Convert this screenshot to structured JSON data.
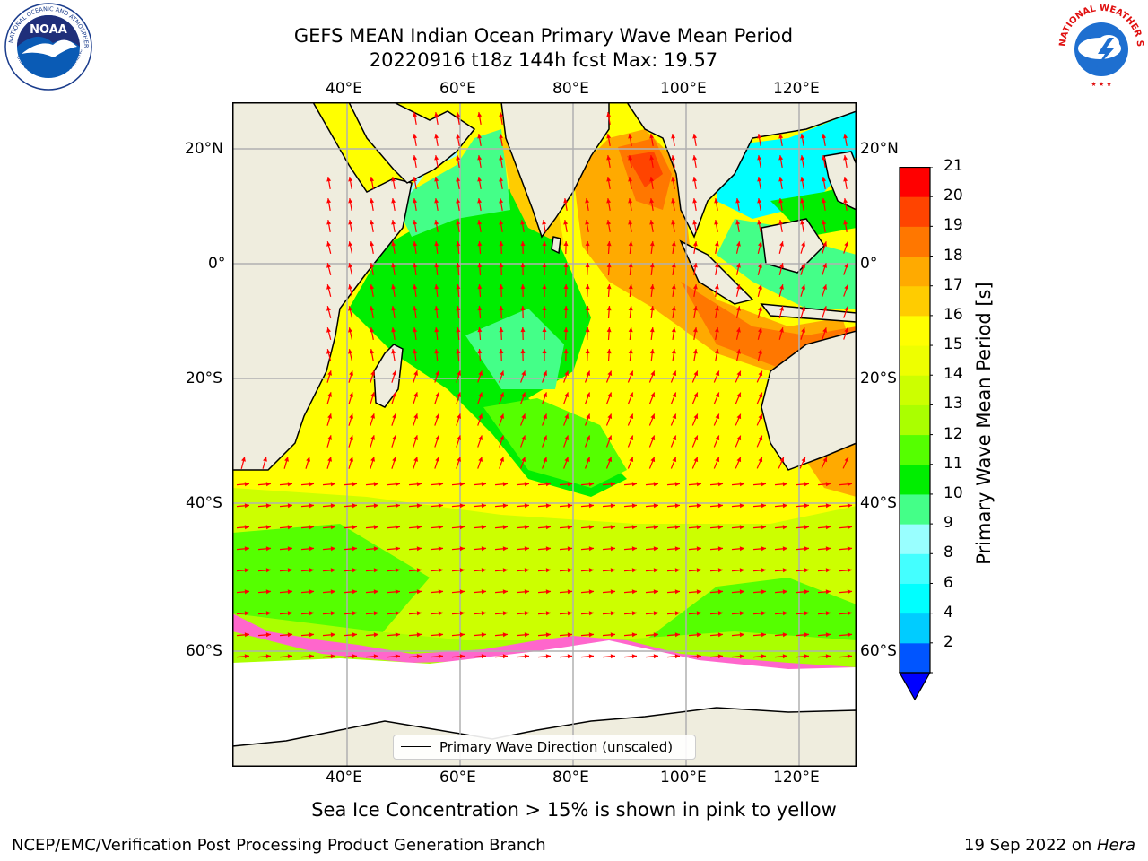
{
  "header": {
    "title_line1": "GEFS MEAN Indian Ocean Primary Wave Mean Period",
    "title_line2": "20220916 t18z 144h fcst   Max: 19.57"
  },
  "logos": {
    "noaa_text": "NOAA",
    "noaa_ring_text": "NATIONAL OCEANIC AND ATMOSPHERIC ADMINISTRATION",
    "noaa_ring_bottom": "U.S. DEPARTMENT OF COMMERCE",
    "nws_ring_text": "NATIONAL WEATHER SERVICE"
  },
  "map": {
    "lon_labels_top": [
      "40°E",
      "60°E",
      "80°E",
      "100°E",
      "120°E"
    ],
    "lon_labels_bottom": [
      "40°E",
      "60°E",
      "80°E",
      "100°E",
      "120°E"
    ],
    "lat_labels_left": [
      "20°N",
      "0°",
      "20°S",
      "40°S",
      "60°S"
    ],
    "lat_labels_right": [
      "20°N",
      "0°",
      "20°S",
      "40°S",
      "60°S"
    ],
    "lon_range": [
      20,
      130
    ],
    "lat_range": [
      -72,
      28
    ],
    "land_color": "#efedde",
    "arrow_color": "#ff0000"
  },
  "legend": {
    "label": "Primary Wave Direction (unscaled)"
  },
  "colorbar": {
    "label": "Primary Wave Mean Period [s]",
    "ticks": [
      "21",
      "20",
      "19",
      "18",
      "17",
      "16",
      "15",
      "14",
      "13",
      "12",
      "11",
      "10",
      "9",
      "8",
      "6",
      "4",
      "2"
    ],
    "colors_bottom_to_top": [
      "#0055ff",
      "#00ccff",
      "#00ffff",
      "#44ffff",
      "#99ffff",
      "#44ff88",
      "#00ee00",
      "#55ff00",
      "#aaff00",
      "#ccff00",
      "#eeff00",
      "#ffff00",
      "#ffcc00",
      "#ffaa00",
      "#ff7700",
      "#ff4400",
      "#ff0000"
    ],
    "extend_color": "#0000ff"
  },
  "caption": "Sea Ice Concentration > 15% is shown in pink to yellow",
  "footer": {
    "left": "NCEP/EMC/Verification Post Processing Product Generation Branch",
    "right_date": "19 Sep 2022 on ",
    "right_host": "Hera"
  }
}
